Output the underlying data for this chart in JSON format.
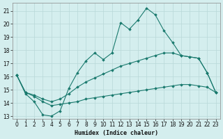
{
  "xlabel": "Humidex (Indice chaleur)",
  "y_main": [
    16.1,
    14.7,
    14.1,
    13.1,
    13.0,
    13.4,
    15.1,
    16.3,
    17.2,
    17.8,
    17.3,
    17.8,
    20.1,
    19.6,
    20.3,
    21.2,
    20.7,
    19.5,
    18.6,
    17.6,
    17.5,
    17.4,
    16.3,
    14.8
  ],
  "y_line1": [
    16.1,
    14.8,
    14.6,
    14.3,
    14.1,
    14.3,
    14.7,
    15.2,
    15.6,
    15.9,
    16.2,
    16.5,
    16.8,
    17.0,
    17.2,
    17.4,
    17.6,
    17.8,
    17.8,
    17.6,
    17.5,
    17.4,
    16.3,
    14.8
  ],
  "y_line2": [
    16.1,
    14.8,
    14.5,
    14.1,
    13.8,
    13.9,
    14.0,
    14.1,
    14.3,
    14.4,
    14.5,
    14.6,
    14.7,
    14.8,
    14.9,
    15.0,
    15.1,
    15.2,
    15.3,
    15.4,
    15.4,
    15.3,
    15.2,
    14.8
  ],
  "color": "#1a7a6e",
  "bg_color": "#d4eeee",
  "grid_color": "#b8d8d8",
  "ylim": [
    12.8,
    21.6
  ],
  "xlim": [
    -0.5,
    23.5
  ],
  "yticks": [
    13,
    14,
    15,
    16,
    17,
    18,
    19,
    20,
    21
  ],
  "xticks": [
    0,
    1,
    2,
    3,
    4,
    5,
    6,
    7,
    8,
    9,
    10,
    11,
    12,
    13,
    14,
    15,
    16,
    17,
    18,
    19,
    20,
    21,
    22,
    23
  ],
  "marker": "D",
  "marker_size": 1.8,
  "linewidth": 0.8,
  "tick_labelsize": 5.5,
  "xlabel_fontsize": 6.0
}
